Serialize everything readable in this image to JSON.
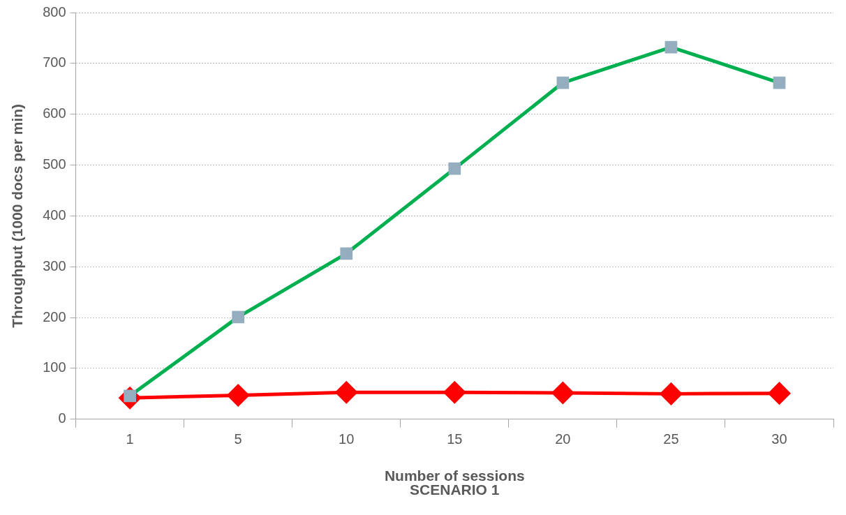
{
  "chart_data": {
    "type": "line",
    "xlabel": "Number of sessions",
    "ylabel": "Throughput (1000 docs per min)",
    "annotations": [
      "SCENARIO 1"
    ],
    "categories": [
      "1",
      "5",
      "10",
      "15",
      "20",
      "25",
      "30"
    ],
    "series": [
      {
        "color": "#00b050",
        "colors": [
          "#94aebf",
          "#94aebf",
          "#94aebf",
          "#94aebf",
          "#94aebf",
          "#94aebf",
          "#94aebf"
        ],
        "marker": "square",
        "values": [
          46,
          201,
          326,
          493,
          662,
          732,
          662
        ]
      },
      {
        "color": "#ff0000",
        "marker": "diamond",
        "values": [
          42,
          47,
          53,
          53,
          52,
          50,
          51
        ]
      }
    ],
    "ylim": [
      0,
      800
    ],
    "yticks": [
      0,
      100,
      200,
      300,
      400,
      500,
      600,
      700,
      800
    ],
    "grid": "y",
    "legend": false,
    "line_style": "solid"
  }
}
